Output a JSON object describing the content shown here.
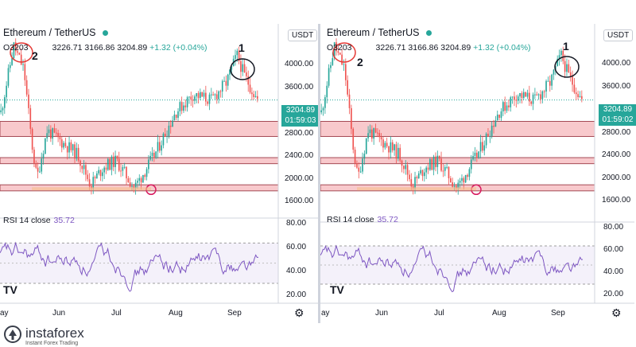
{
  "left": {
    "title": "Ethereum / TetherUS",
    "ohlc": "O3203€3 С6С3226.71 3166.86 3204.89 +1.32 (+0.04%)",
    "ohlc_plain": "O3203",
    "ohlc_rest": "3226.71 3166.86 3204.89",
    "change": "+1.32 (+0.04%)",
    "currency": "USDT",
    "price_tag": "3204.89",
    "timer": "01:59:03",
    "price_labels": [
      "4000.00",
      "3600.00",
      "3200.00",
      "2800.00",
      "2400.00",
      "2000.00",
      "1600.00"
    ],
    "rsi_label": "RSI 14 close",
    "rsi_value": "35.72",
    "rsi_labels": [
      "80.00",
      "60.00",
      "40.00",
      "20.00"
    ],
    "months": [
      "ay",
      "Jun",
      "Jul",
      "Aug",
      "Sep"
    ],
    "annot_1": "1",
    "annot_2": "2"
  },
  "right": {
    "title": "Ethereum / TetherUS",
    "ohlc_plain": "O3203",
    "ohlc_rest": "3226.71 3166.86 3204.89",
    "change": "+1.32 (+0.04%)",
    "currency": "USDT",
    "price_tag": "3204.89",
    "timer": "01:59:02",
    "price_labels": [
      "4000.00",
      "3600.00",
      "3200.00",
      "2800.00",
      "2400.00",
      "2000.00",
      "1600.00"
    ],
    "rsi_label": "RSI 14 close",
    "rsi_value": "35.72",
    "rsi_labels": [
      "80.00",
      "60.00",
      "40.00",
      "20.00"
    ],
    "months": [
      "ay",
      "Jun",
      "Jul",
      "Aug",
      "Sep"
    ],
    "annot_1": "1",
    "annot_2": "2"
  },
  "brand": {
    "name": "instaforex",
    "tagline": "Instant Forex Trading"
  },
  "colors": {
    "up": "#26a69a",
    "down": "#ef5350",
    "rsi": "#7e57c2",
    "zone": "#f8c9cc",
    "zone_border": "#a54a55"
  },
  "chart_data": {
    "type": "candlestick",
    "symbol": "Ethereum / TetherUS",
    "last_price": 3204.89,
    "y_ticks": [
      4000,
      3600,
      3200,
      2800,
      2400,
      2000,
      1600
    ],
    "x_ticks": [
      "Jun",
      "Jul",
      "Aug",
      "Sep"
    ],
    "zones": [
      [
        2600,
        2850
      ],
      [
        2150,
        2250
      ],
      [
        1700,
        1800
      ]
    ],
    "rsi": {
      "period": 14,
      "last": 35.72,
      "ticks": [
        80,
        60,
        40,
        20
      ],
      "band": [
        30,
        70
      ]
    }
  }
}
